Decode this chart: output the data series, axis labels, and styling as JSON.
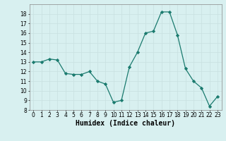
{
  "x": [
    0,
    1,
    2,
    3,
    4,
    5,
    6,
    7,
    8,
    9,
    10,
    11,
    12,
    13,
    14,
    15,
    16,
    17,
    18,
    19,
    20,
    21,
    22,
    23
  ],
  "y": [
    13,
    13,
    13.3,
    13.2,
    11.8,
    11.7,
    11.7,
    12,
    11,
    10.7,
    8.8,
    9,
    12.5,
    14,
    16,
    16.2,
    18.2,
    18.2,
    15.8,
    12.3,
    11,
    10.3,
    8.4,
    9.4
  ],
  "xlabel": "Humidex (Indice chaleur)",
  "line_color": "#1a7a6e",
  "marker": "D",
  "marker_size": 2.2,
  "bg_color": "#d8f0f0",
  "grid_color": "#c8e0e0",
  "ylim": [
    8,
    19
  ],
  "xlim": [
    -0.5,
    23.5
  ],
  "yticks": [
    8,
    9,
    10,
    11,
    12,
    13,
    14,
    15,
    16,
    17,
    18
  ],
  "xticks": [
    0,
    1,
    2,
    3,
    4,
    5,
    6,
    7,
    8,
    9,
    10,
    11,
    12,
    13,
    14,
    15,
    16,
    17,
    18,
    19,
    20,
    21,
    22,
    23
  ],
  "tick_fontsize": 5.5,
  "xlabel_fontsize": 7.0
}
